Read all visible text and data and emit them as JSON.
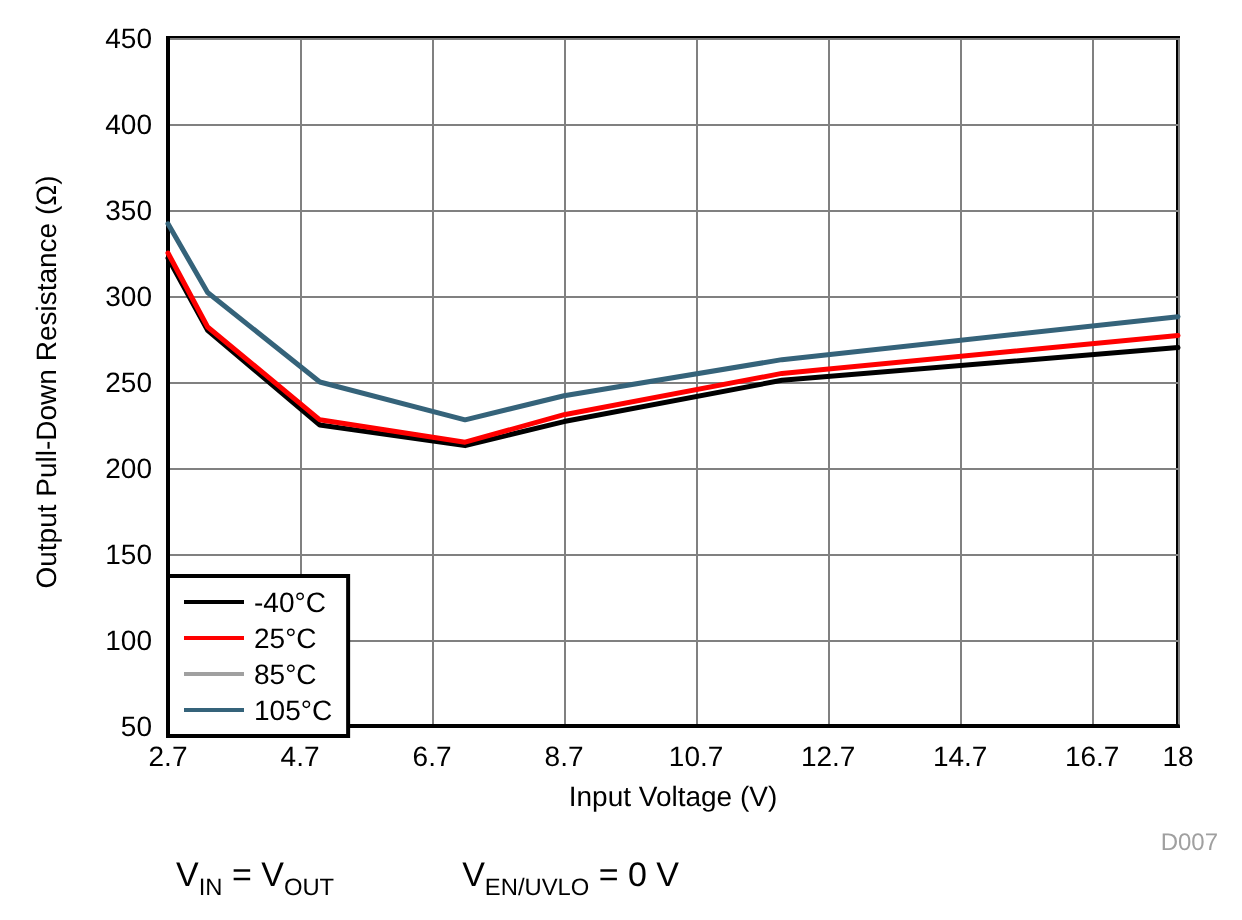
{
  "chart_data": {
    "type": "line",
    "xlabel": "Input Voltage (V)",
    "ylabel": "Output Pull-Down Resistance (Ω)",
    "x": [
      2.7,
      3.3,
      5,
      7.2,
      8.7,
      12,
      18
    ],
    "series": [
      {
        "name": "-40°C",
        "color": "#000000",
        "values": [
          322,
          280,
          225,
          213,
          227,
          251,
          270
        ]
      },
      {
        "name": "25°C",
        "color": "#ff0000",
        "values": [
          325,
          282,
          228,
          215,
          231,
          255,
          277
        ]
      },
      {
        "name": "85°C",
        "color": "#a0a0a0",
        "values": [
          null,
          null,
          null,
          null,
          null,
          null,
          null
        ]
      },
      {
        "name": "105°C",
        "color": "#35637a",
        "values": [
          342,
          302,
          250,
          228,
          242,
          263,
          288
        ]
      }
    ],
    "xlim": [
      2.7,
      18
    ],
    "xticks": [
      2.7,
      4.7,
      6.7,
      8.7,
      10.7,
      12.7,
      14.7,
      16.7,
      18
    ],
    "ylim": [
      50,
      450
    ],
    "yticks": [
      50,
      100,
      150,
      200,
      250,
      300,
      350,
      400,
      450
    ],
    "grid": true,
    "legend": "bottom left",
    "marker": "none",
    "line_style": "solid",
    "annotations": [
      "D007",
      "V$_{IN}$ = V$_{OUT}$",
      "V$_{EN/UVLO}$ = 0 V"
    ]
  }
}
